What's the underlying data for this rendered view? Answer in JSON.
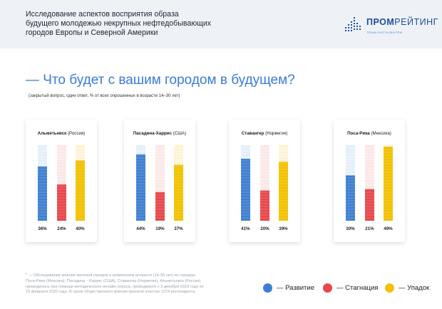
{
  "header": {
    "title_lines": [
      "Исследование аспектов восприятия образа",
      "будущего молодежью некрупных нефтедобывающих",
      "городов Европы и Северной Америки"
    ],
    "logo_bold": "ПРОМ",
    "logo_rest": "РЕЙТИНГ",
    "logo_sub": "ТОЧКА РОСТА ВНУТРИ"
  },
  "question": "— Что будет с вашим городом в будущем?",
  "note": "(закрытый вопрос, один ответ, % от всех опрошенных в возрасте 14–30 лет)",
  "colors": {
    "growth": "#3f7fd1",
    "stagnation": "#e8474b",
    "decline": "#f2c200",
    "growth_bg": "#e4eefa",
    "stagnation_bg": "#fbe6e6",
    "decline_bg": "#fdf3d4"
  },
  "chart_data": {
    "type": "bar",
    "title": "Что будет с вашим городом в будущем?",
    "ylim": [
      0,
      100
    ],
    "unit": "%",
    "series_names": [
      "Развитие",
      "Стагнация",
      "Упадок"
    ],
    "cities": [
      {
        "name": "Альметьевск",
        "country": "(Россия)",
        "values": [
          36,
          24,
          40
        ],
        "labels": [
          "36%",
          "24%",
          "40%"
        ]
      },
      {
        "name": "Пасадина-Харрис",
        "country": "(США)",
        "values": [
          44,
          19,
          37
        ],
        "labels": [
          "44%",
          "19%",
          "37%"
        ]
      },
      {
        "name": "Ставангер",
        "country": "(Норвегия)",
        "values": [
          41,
          20,
          39
        ],
        "labels": [
          "41%",
          "20%",
          "39%"
        ]
      },
      {
        "name": "Поса-Рика",
        "country": "(Мексика)",
        "values": [
          30,
          21,
          49
        ],
        "labels": [
          "30%",
          "21%",
          "49%"
        ]
      }
    ]
  },
  "legend": [
    {
      "label": "— Развитие",
      "key": "growth"
    },
    {
      "label": "— Стагнация",
      "key": "stagnation"
    },
    {
      "label": "— Упадок",
      "key": "decline"
    }
  ],
  "footnote_lines": [
    "* — Обследование мнения жителей городов в заявленном возрасте (14-30 лет) по городам",
    "Поса-Рика (Мексика), Пасадина - Харрис (США), Ставангер (Норвегия), Альметьевск (Россия)",
    "проводилось при помощи методического онлайн опроса, проводимого с 3 декабря 2019 года по",
    "19 февраля 2020 года. В срезе общественного мнения приняли участие 1374 респондента."
  ]
}
